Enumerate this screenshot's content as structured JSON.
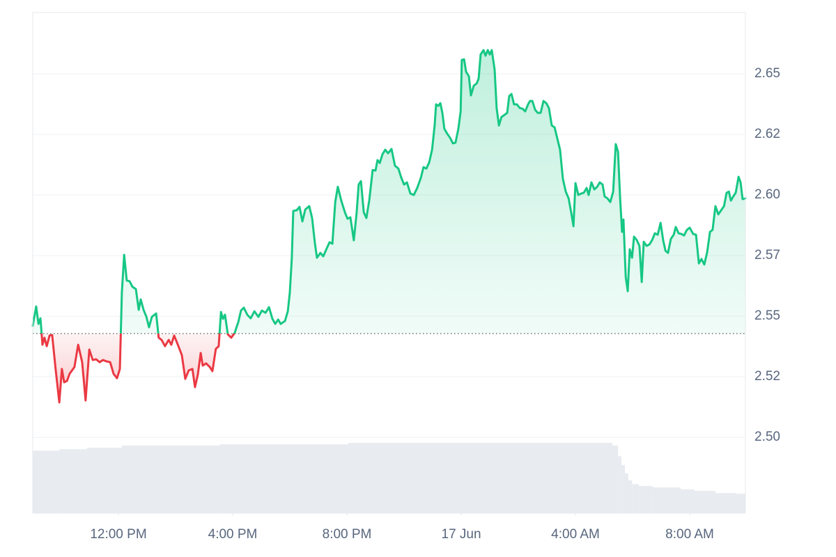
{
  "chart_data": {
    "type": "line",
    "x": [
      9.0,
      9.12,
      9.2,
      9.27,
      9.34,
      9.41,
      9.49,
      9.59,
      9.68,
      9.8,
      9.93,
      10.02,
      10.1,
      10.2,
      10.29,
      10.46,
      10.59,
      10.73,
      10.85,
      10.98,
      11.1,
      11.22,
      11.34,
      11.46,
      11.59,
      11.71,
      11.83,
      11.95,
      12.05,
      12.12,
      12.2,
      12.29,
      12.39,
      12.49,
      12.61,
      12.71,
      12.78,
      12.88,
      12.98,
      13.07,
      13.17,
      13.32,
      13.41,
      13.51,
      13.63,
      13.76,
      13.85,
      13.95,
      14.1,
      14.22,
      14.34,
      14.46,
      14.59,
      14.68,
      14.78,
      14.88,
      14.95,
      15.07,
      15.2,
      15.29,
      15.41,
      15.51,
      15.59,
      15.66,
      15.73,
      15.83,
      15.95,
      16.07,
      16.2,
      16.29,
      16.39,
      16.51,
      16.63,
      16.76,
      16.9,
      17.02,
      17.15,
      17.27,
      17.39,
      17.49,
      17.59,
      17.68,
      17.83,
      17.93,
      18.0,
      18.07,
      18.12,
      18.24,
      18.34,
      18.44,
      18.54,
      18.68,
      18.78,
      18.88,
      18.95,
      19.07,
      19.17,
      19.29,
      19.39,
      19.49,
      19.59,
      19.68,
      19.8,
      19.93,
      20.02,
      20.12,
      20.24,
      20.34,
      20.41,
      20.49,
      20.59,
      20.68,
      20.78,
      20.9,
      21.0,
      21.07,
      21.15,
      21.24,
      21.34,
      21.44,
      21.56,
      21.68,
      21.8,
      21.9,
      22.0,
      22.1,
      22.22,
      22.34,
      22.46,
      22.59,
      22.68,
      22.78,
      22.88,
      22.98,
      23.07,
      23.12,
      23.2,
      23.27,
      23.34,
      23.41,
      23.51,
      23.61,
      23.71,
      23.8,
      23.9,
      23.98,
      24.02,
      24.1,
      24.17,
      24.27,
      24.34,
      24.44,
      24.54,
      24.61,
      24.68,
      24.78,
      24.85,
      24.93,
      25.0,
      25.07,
      25.17,
      25.24,
      25.32,
      25.41,
      25.51,
      25.61,
      25.68,
      25.76,
      25.85,
      25.95,
      26.05,
      26.15,
      26.24,
      26.34,
      26.41,
      26.49,
      26.59,
      26.68,
      26.78,
      26.88,
      26.98,
      27.07,
      27.17,
      27.27,
      27.37,
      27.46,
      27.56,
      27.66,
      27.76,
      27.85,
      27.93,
      28.0,
      28.1,
      28.2,
      28.29,
      28.39,
      28.46,
      28.56,
      28.66,
      28.76,
      28.85,
      28.95,
      29.02,
      29.12,
      29.22,
      29.32,
      29.41,
      29.49,
      29.56,
      29.63,
      29.68,
      29.76,
      29.83,
      29.9,
      29.98,
      30.05,
      30.15,
      30.24,
      30.32,
      30.39,
      30.49,
      30.59,
      30.68,
      30.78,
      30.88,
      30.98,
      31.07,
      31.15,
      31.24,
      31.34,
      31.44,
      31.51,
      31.61,
      31.71,
      31.8,
      31.9,
      32.0,
      32.12,
      32.22,
      32.32,
      32.41,
      32.51,
      32.61,
      32.71,
      32.8,
      32.9,
      33.0,
      33.1,
      33.2,
      33.29,
      33.37,
      33.44,
      33.54,
      33.61,
      33.71,
      33.78,
      33.85,
      33.95
    ],
    "values": [
      2.546,
      2.554,
      2.5468,
      2.5491,
      2.5382,
      2.5411,
      2.5376,
      2.542,
      2.5422,
      2.5282,
      2.5144,
      2.5282,
      2.5227,
      2.5233,
      2.5262,
      2.529,
      2.5382,
      2.531,
      2.5152,
      2.5362,
      2.5319,
      2.5322,
      2.531,
      2.5319,
      2.5313,
      2.531,
      2.5262,
      2.5244,
      2.5282,
      2.5598,
      2.5753,
      2.5647,
      2.5644,
      2.5621,
      2.5612,
      2.5526,
      2.5569,
      2.5526,
      2.5497,
      2.5454,
      2.5497,
      2.5511,
      2.5411,
      2.5402,
      2.5376,
      2.5402,
      2.5382,
      2.542,
      2.5376,
      2.5339,
      2.5241,
      2.5276,
      2.5282,
      2.5207,
      2.5259,
      2.5348,
      2.5296,
      2.5305,
      2.529,
      2.5273,
      2.5365,
      2.5376,
      2.5517,
      2.5489,
      2.5506,
      2.5425,
      2.5411,
      2.5431,
      2.5477,
      2.5523,
      2.5535,
      2.5506,
      2.5491,
      2.552,
      2.5497,
      2.5523,
      2.5514,
      2.5537,
      2.5489,
      2.5468,
      2.5486,
      2.5468,
      2.548,
      2.552,
      2.5598,
      2.5741,
      2.5934,
      2.5937,
      2.5951,
      2.5891,
      2.594,
      2.5954,
      2.5905,
      2.5799,
      2.5741,
      2.5761,
      2.5747,
      2.5779,
      2.5805,
      2.5799,
      2.5971,
      2.6034,
      2.5977,
      2.5928,
      2.5902,
      2.5908,
      2.5813,
      2.5928,
      2.6043,
      2.6057,
      2.5928,
      2.5905,
      2.5977,
      2.6103,
      2.6101,
      2.6144,
      2.6132,
      2.6167,
      2.6187,
      2.6172,
      2.619,
      2.6121,
      2.6109,
      2.6072,
      2.6043,
      2.6052,
      2.6006,
      2.6,
      2.6029,
      2.6072,
      2.6115,
      2.6109,
      2.6135,
      2.6187,
      2.6287,
      2.6374,
      2.6368,
      2.6379,
      2.6339,
      2.6273,
      2.6253,
      2.6236,
      2.6213,
      2.6216,
      2.6273,
      2.6345,
      2.6557,
      2.656,
      2.6509,
      2.6489,
      2.6411,
      2.6451,
      2.646,
      2.648,
      2.658,
      2.6598,
      2.6575,
      2.6598,
      2.658,
      2.6598,
      2.6517,
      2.6359,
      2.6287,
      2.6322,
      2.633,
      2.6339,
      2.6408,
      2.6417,
      2.6374,
      2.6374,
      2.6359,
      2.6356,
      2.6345,
      2.6374,
      2.6388,
      2.6388,
      2.6351,
      2.6339,
      2.6339,
      2.6388,
      2.6379,
      2.6359,
      2.6287,
      2.6279,
      2.623,
      2.6187,
      2.6066,
      2.6014,
      2.5986,
      2.5928,
      2.5871,
      2.6049,
      2.6,
      2.6006,
      2.6009,
      2.6029,
      2.6,
      2.6052,
      2.6023,
      2.6034,
      2.6052,
      2.6043,
      2.5994,
      2.5986,
      2.5971,
      2.6014,
      2.621,
      2.6178,
      2.5994,
      2.5848,
      2.5899,
      2.5661,
      2.5603,
      2.5776,
      2.5741,
      2.5828,
      2.5813,
      2.579,
      2.5641,
      2.5807,
      2.579,
      2.5796,
      2.5813,
      2.5842,
      2.5836,
      2.5885,
      2.5813,
      2.577,
      2.5761,
      2.5819,
      2.5836,
      2.5868,
      2.5842,
      2.5839,
      2.5833,
      2.5856,
      2.5865,
      2.5839,
      2.5836,
      2.5718,
      2.5736,
      2.5713,
      2.5764,
      2.5848,
      2.5856,
      2.5954,
      2.592,
      2.5937,
      2.5954,
      2.6009,
      2.6014,
      2.5977,
      2.5997,
      2.6009,
      2.6075,
      2.6052,
      2.5983,
      2.5986
    ],
    "baseline": 2.5428,
    "up_color": "#16c784",
    "down_color": "#ea3943",
    "volume": {
      "color": "#e8ebf0",
      "x": [
        9.0,
        9.93,
        10.9,
        12.12,
        15.54,
        20.05,
        29.29,
        29.49,
        29.61,
        29.73,
        29.85,
        29.98,
        30.22,
        30.71,
        31.68,
        32.17,
        32.9,
        33.63
      ],
      "values": [
        2.4945,
        2.4951,
        2.4957,
        2.4966,
        2.4971,
        2.4977,
        2.4966,
        2.4922,
        2.4885,
        2.4851,
        2.4822,
        2.4807,
        2.4799,
        2.4793,
        2.4785,
        2.4779,
        2.477,
        2.4767
      ]
    },
    "xlim": [
      9,
      33.95
    ],
    "ylim": [
      2.4687,
      2.6753
    ],
    "xticks": [
      {
        "value": 12,
        "label": "12:00 PM"
      },
      {
        "value": 16,
        "label": "4:00 PM"
      },
      {
        "value": 20,
        "label": "8:00 PM"
      },
      {
        "value": 24,
        "label": "17 Jun"
      },
      {
        "value": 28,
        "label": "4:00 AM"
      },
      {
        "value": 32,
        "label": "8:00 AM"
      }
    ],
    "yticks": [
      {
        "value": 2.5,
        "label": "2.50"
      },
      {
        "value": 2.525,
        "label": "2.52"
      },
      {
        "value": 2.55,
        "label": "2.55"
      },
      {
        "value": 2.575,
        "label": "2.57"
      },
      {
        "value": 2.6,
        "label": "2.60"
      },
      {
        "value": 2.625,
        "label": "2.62"
      },
      {
        "value": 2.65,
        "label": "2.65"
      }
    ],
    "grid": true
  }
}
